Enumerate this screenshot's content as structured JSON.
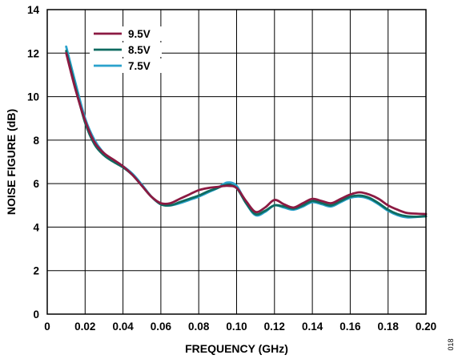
{
  "chart_data": {
    "type": "line",
    "xlabel": "FREQUENCY (GHz)",
    "ylabel": "NOISE FIGURE (dB)",
    "xlim": [
      0,
      0.2
    ],
    "ylim": [
      0,
      14
    ],
    "xticks": [
      0,
      0.02,
      0.04,
      0.06,
      0.08,
      0.1,
      0.12,
      0.14,
      0.16,
      0.18,
      0.2
    ],
    "xtick_labels": [
      "0",
      "0.02",
      "0.04",
      "0.06",
      "0.08",
      "0.10",
      "0.12",
      "0.14",
      "0.16",
      "0.18",
      "0.20"
    ],
    "yticks": [
      0,
      2,
      4,
      6,
      8,
      10,
      12,
      14
    ],
    "ytick_labels": [
      "0",
      "2",
      "4",
      "6",
      "8",
      "10",
      "12",
      "14"
    ],
    "grid": true,
    "legend_position": "top-left",
    "series": [
      {
        "name": "9.5V",
        "color": "#8b1a42",
        "x": [
          0.01,
          0.015,
          0.02,
          0.025,
          0.03,
          0.035,
          0.04,
          0.045,
          0.05,
          0.055,
          0.06,
          0.065,
          0.07,
          0.075,
          0.08,
          0.085,
          0.09,
          0.095,
          0.1,
          0.105,
          0.11,
          0.115,
          0.12,
          0.125,
          0.13,
          0.135,
          0.14,
          0.145,
          0.15,
          0.155,
          0.16,
          0.165,
          0.17,
          0.175,
          0.18,
          0.185,
          0.19,
          0.195,
          0.2
        ],
        "y": [
          12.0,
          10.3,
          8.9,
          7.9,
          7.4,
          7.1,
          6.8,
          6.4,
          5.9,
          5.4,
          5.1,
          5.1,
          5.3,
          5.5,
          5.7,
          5.8,
          5.85,
          5.9,
          5.8,
          5.2,
          4.7,
          4.9,
          5.25,
          5.05,
          4.9,
          5.1,
          5.3,
          5.2,
          5.1,
          5.3,
          5.5,
          5.6,
          5.5,
          5.3,
          5.0,
          4.8,
          4.65,
          4.62,
          4.6
        ]
      },
      {
        "name": "8.5V",
        "color": "#0e6b60",
        "x": [
          0.01,
          0.015,
          0.02,
          0.025,
          0.03,
          0.035,
          0.04,
          0.045,
          0.05,
          0.055,
          0.06,
          0.065,
          0.07,
          0.075,
          0.08,
          0.085,
          0.09,
          0.095,
          0.1,
          0.105,
          0.11,
          0.115,
          0.12,
          0.125,
          0.13,
          0.135,
          0.14,
          0.145,
          0.15,
          0.155,
          0.16,
          0.165,
          0.17,
          0.175,
          0.18,
          0.185,
          0.19,
          0.195,
          0.2
        ],
        "y": [
          12.1,
          10.4,
          8.8,
          7.8,
          7.3,
          7.0,
          6.75,
          6.4,
          5.9,
          5.4,
          5.05,
          5.0,
          5.15,
          5.3,
          5.45,
          5.65,
          5.8,
          5.95,
          5.8,
          5.1,
          4.6,
          4.75,
          5.0,
          4.95,
          4.85,
          5.0,
          5.2,
          5.1,
          5.0,
          5.2,
          5.4,
          5.45,
          5.35,
          5.1,
          4.8,
          4.6,
          4.5,
          4.48,
          4.5
        ]
      },
      {
        "name": "7.5V",
        "color": "#2aa2cc",
        "x": [
          0.01,
          0.015,
          0.02,
          0.025,
          0.03,
          0.035,
          0.04,
          0.045,
          0.05,
          0.055,
          0.06,
          0.065,
          0.07,
          0.075,
          0.08,
          0.085,
          0.09,
          0.095,
          0.1,
          0.105,
          0.11,
          0.115,
          0.12,
          0.125,
          0.13,
          0.135,
          0.14,
          0.145,
          0.15,
          0.155,
          0.16,
          0.165,
          0.17,
          0.175,
          0.18,
          0.185,
          0.19,
          0.195,
          0.2
        ],
        "y": [
          12.3,
          10.6,
          9.0,
          8.0,
          7.4,
          7.05,
          6.8,
          6.45,
          5.95,
          5.4,
          5.05,
          5.0,
          5.1,
          5.25,
          5.4,
          5.6,
          5.8,
          6.05,
          5.9,
          5.1,
          4.55,
          4.7,
          5.0,
          4.9,
          4.8,
          4.95,
          5.15,
          5.05,
          4.95,
          5.15,
          5.35,
          5.4,
          5.3,
          5.05,
          4.75,
          4.55,
          4.45,
          4.47,
          4.5
        ]
      }
    ]
  },
  "figure_code": "018"
}
